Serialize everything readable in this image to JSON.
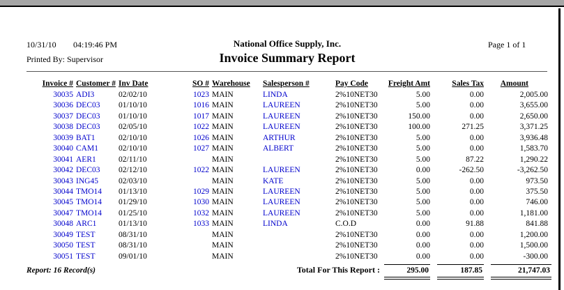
{
  "report": {
    "printed_date": "10/31/10",
    "printed_time": "04:19:46 PM",
    "company_name": "National Office Supply, Inc.",
    "page_indicator": "Page 1 of 1",
    "printed_by": "Printed By: Supervisor",
    "title": "Invoice Summary Report"
  },
  "table": {
    "headers": {
      "invoice": "Invoice #",
      "customer": "Customer #",
      "inv_date": "Inv Date",
      "so": "SO #",
      "warehouse": "Warehouse",
      "salesperson": "Salesperson #",
      "pay_code": "Pay Code",
      "freight": "Freight Amt",
      "sales_tax": "Sales Tax",
      "amount": "Amount"
    },
    "rows": [
      {
        "invoice": "30035",
        "customer": "ADI3",
        "inv_date": "02/02/10",
        "so": "1023",
        "warehouse": "MAIN",
        "salesperson": "LINDA",
        "pay_code": "2%10NET30",
        "freight": "5.00",
        "sales_tax": "0.00",
        "amount": "2,005.00"
      },
      {
        "invoice": "30036",
        "customer": "DEC03",
        "inv_date": "01/10/10",
        "so": "1016",
        "warehouse": "MAIN",
        "salesperson": "LAUREEN",
        "pay_code": "2%10NET30",
        "freight": "5.00",
        "sales_tax": "0.00",
        "amount": "3,655.00"
      },
      {
        "invoice": "30037",
        "customer": "DEC03",
        "inv_date": "01/10/10",
        "so": "1017",
        "warehouse": "MAIN",
        "salesperson": "LAUREEN",
        "pay_code": "2%10NET30",
        "freight": "150.00",
        "sales_tax": "0.00",
        "amount": "2,650.00"
      },
      {
        "invoice": "30038",
        "customer": "DEC03",
        "inv_date": "02/05/10",
        "so": "1022",
        "warehouse": "MAIN",
        "salesperson": "LAUREEN",
        "pay_code": "2%10NET30",
        "freight": "100.00",
        "sales_tax": "271.25",
        "amount": "3,371.25"
      },
      {
        "invoice": "30039",
        "customer": "BAT1",
        "inv_date": "02/10/10",
        "so": "1026",
        "warehouse": "MAIN",
        "salesperson": "ARTHUR",
        "pay_code": "2%10NET30",
        "freight": "5.00",
        "sales_tax": "0.00",
        "amount": "3,936.48"
      },
      {
        "invoice": "30040",
        "customer": "CAM1",
        "inv_date": "02/10/10",
        "so": "1027",
        "warehouse": "MAIN",
        "salesperson": "ALBERT",
        "pay_code": "2%10NET30",
        "freight": "5.00",
        "sales_tax": "0.00",
        "amount": "1,583.70"
      },
      {
        "invoice": "30041",
        "customer": "AER1",
        "inv_date": "02/11/10",
        "so": "",
        "warehouse": "MAIN",
        "salesperson": "",
        "pay_code": "2%10NET30",
        "freight": "5.00",
        "sales_tax": "87.22",
        "amount": "1,290.22"
      },
      {
        "invoice": "30042",
        "customer": "DEC03",
        "inv_date": "02/12/10",
        "so": "1022",
        "warehouse": "MAIN",
        "salesperson": "LAUREEN",
        "pay_code": "2%10NET30",
        "freight": "0.00",
        "sales_tax": "-262.50",
        "amount": "-3,262.50"
      },
      {
        "invoice": "30043",
        "customer": "ING45",
        "inv_date": "02/03/10",
        "so": "",
        "warehouse": "MAIN",
        "salesperson": "KATE",
        "pay_code": "2%10NET30",
        "freight": "5.00",
        "sales_tax": "0.00",
        "amount": "973.50"
      },
      {
        "invoice": "30044",
        "customer": "TMO14",
        "inv_date": "01/13/10",
        "so": "1029",
        "warehouse": "MAIN",
        "salesperson": "LAUREEN",
        "pay_code": "2%10NET30",
        "freight": "5.00",
        "sales_tax": "0.00",
        "amount": "375.50"
      },
      {
        "invoice": "30045",
        "customer": "TMO14",
        "inv_date": "01/29/10",
        "so": "1030",
        "warehouse": "MAIN",
        "salesperson": "LAUREEN",
        "pay_code": "2%10NET30",
        "freight": "5.00",
        "sales_tax": "0.00",
        "amount": "746.00"
      },
      {
        "invoice": "30047",
        "customer": "TMO14",
        "inv_date": "01/25/10",
        "so": "1032",
        "warehouse": "MAIN",
        "salesperson": "LAUREEN",
        "pay_code": "2%10NET30",
        "freight": "5.00",
        "sales_tax": "0.00",
        "amount": "1,181.00"
      },
      {
        "invoice": "30048",
        "customer": "ARC1",
        "inv_date": "01/13/10",
        "so": "1033",
        "warehouse": "MAIN",
        "salesperson": "LINDA",
        "pay_code": "C.O.D",
        "freight": "0.00",
        "sales_tax": "91.88",
        "amount": "841.88"
      },
      {
        "invoice": "30049",
        "customer": "TEST",
        "inv_date": "08/31/10",
        "so": "",
        "warehouse": "MAIN",
        "salesperson": "",
        "pay_code": "2%10NET30",
        "freight": "0.00",
        "sales_tax": "0.00",
        "amount": "1,200.00"
      },
      {
        "invoice": "30050",
        "customer": "TEST",
        "inv_date": "08/31/10",
        "so": "",
        "warehouse": "MAIN",
        "salesperson": "",
        "pay_code": "2%10NET30",
        "freight": "0.00",
        "sales_tax": "0.00",
        "amount": "1,500.00"
      },
      {
        "invoice": "30051",
        "customer": "TEST",
        "inv_date": "09/01/10",
        "so": "",
        "warehouse": "MAIN",
        "salesperson": "",
        "pay_code": "2%10NET30",
        "freight": "0.00",
        "sales_tax": "0.00",
        "amount": "-300.00"
      }
    ]
  },
  "footer": {
    "record_count": "Report: 16 Record(s)",
    "total_label": "Total For This Report :",
    "totals": {
      "freight": "295.00",
      "sales_tax": "187.85",
      "amount": "21,747.03"
    }
  },
  "colors": {
    "link_blue": "#0000cc",
    "text_black": "#000000",
    "chrome_gray": "#a6a6a6",
    "rule_gray": "#555555"
  }
}
